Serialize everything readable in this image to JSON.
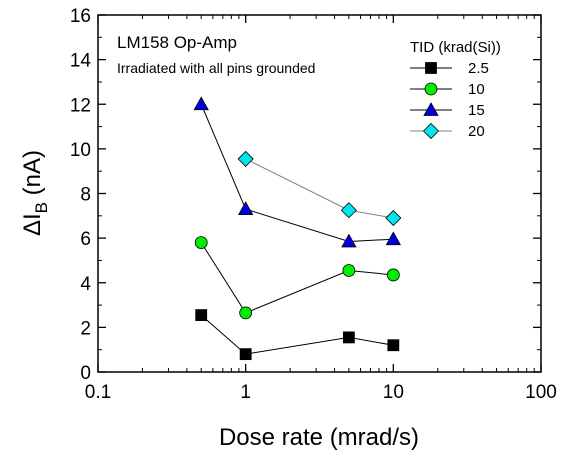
{
  "chart_data": {
    "type": "scatter",
    "x_scale": "log",
    "xlim": [
      0.1,
      100
    ],
    "ylim": [
      0,
      16
    ],
    "x_ticks": [
      "0.1",
      "1",
      "10",
      "100"
    ],
    "y_ticks": [
      "0",
      "2",
      "4",
      "6",
      "8",
      "10",
      "12",
      "14",
      "16"
    ],
    "xlabel": "Dose rate (mrad/s)",
    "ylabel_main": "ΔI",
    "ylabel_sub": "B",
    "ylabel_unit": " (nA)",
    "annotations": [
      "LM158 Op-Amp",
      "Irradiated with all pins grounded"
    ],
    "legend_title": "TID (krad(Si))",
    "legend_position": "top-right",
    "series": [
      {
        "name": "2.5",
        "marker": "square",
        "color": "#000000",
        "line_color": "#000000",
        "x": [
          0.5,
          1,
          5,
          10
        ],
        "y": [
          2.55,
          0.8,
          1.55,
          1.2
        ]
      },
      {
        "name": "10",
        "marker": "circle",
        "color": "#00ee00",
        "line_color": "#000000",
        "x": [
          0.5,
          1,
          5,
          10
        ],
        "y": [
          5.8,
          2.65,
          4.55,
          4.35
        ]
      },
      {
        "name": "15",
        "marker": "triangle",
        "color": "#0000dd",
        "line_color": "#000000",
        "x": [
          0.5,
          1,
          5,
          10
        ],
        "y": [
          12.0,
          7.3,
          5.85,
          5.95
        ]
      },
      {
        "name": "20",
        "marker": "diamond",
        "color": "#00e5ee",
        "line_color": "#808080",
        "x": [
          1,
          5,
          10
        ],
        "y": [
          9.55,
          7.25,
          6.9
        ]
      }
    ]
  }
}
